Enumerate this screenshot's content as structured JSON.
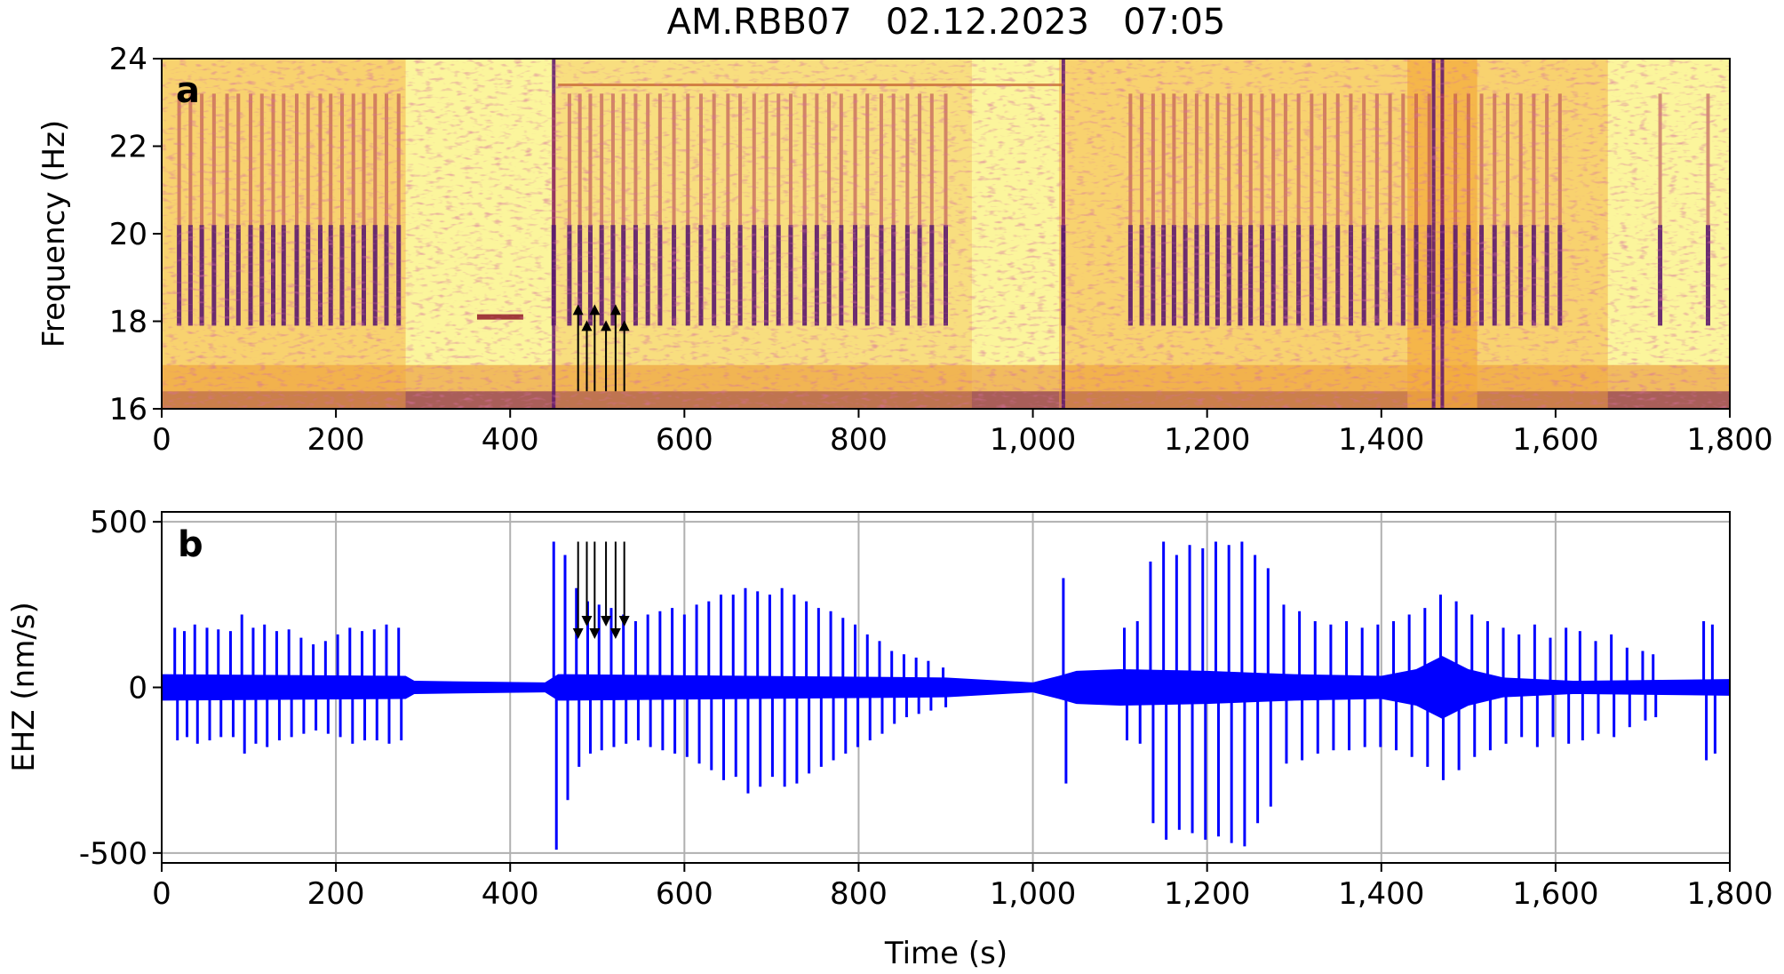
{
  "figure": {
    "title": "AM.RBB07   02.12.2023   07:05"
  },
  "chart_data": [
    {
      "panel": "a",
      "type": "heatmap",
      "subtype": "spectrogram",
      "colormap": "inferno",
      "xlabel": "",
      "ylabel": "Frequency (Hz)",
      "xlim": [
        0,
        1800
      ],
      "ylim": [
        16,
        24
      ],
      "xticks": [
        "0",
        "200",
        "400",
        "600",
        "800",
        "1,000",
        "1,200",
        "1,400",
        "1,600",
        "1,800"
      ],
      "yticks": [
        "16",
        "18",
        "20",
        "22",
        "24"
      ],
      "grid": false,
      "arrow_times_s": [
        478,
        488,
        497,
        510,
        521,
        531
      ],
      "arrow_direction": "up",
      "arrow_freq_range_hz": [
        16.4,
        17.9
      ],
      "tone_line": {
        "t_start": 362,
        "t_end": 415,
        "freq_hz": 18.1
      },
      "pulse_freq_range_hz": [
        17.9,
        20.2
      ],
      "pulse_times_s": [
        20,
        33,
        46,
        60,
        75,
        88,
        102,
        115,
        128,
        140,
        155,
        168,
        182,
        194,
        207,
        220,
        232,
        245,
        258,
        272,
        450,
        468,
        480,
        492,
        505,
        518,
        530,
        544,
        558,
        572,
        588,
        604,
        619,
        634,
        650,
        664,
        680,
        694,
        708,
        722,
        738,
        752,
        766,
        780,
        796,
        810,
        826,
        840,
        856,
        870,
        884,
        900,
        1035,
        1112,
        1125,
        1138,
        1150,
        1162,
        1175,
        1188,
        1200,
        1212,
        1225,
        1238,
        1250,
        1263,
        1276,
        1290,
        1305,
        1320,
        1335,
        1350,
        1365,
        1380,
        1395,
        1410,
        1425,
        1440,
        1455,
        1470,
        1485,
        1500,
        1515,
        1530,
        1545,
        1560,
        1575,
        1590,
        1605,
        1720,
        1775
      ]
    },
    {
      "panel": "b",
      "type": "line",
      "xlabel": "Time (s)",
      "ylabel": "EHZ (nm/s)",
      "xlim": [
        0,
        1800
      ],
      "ylim": [
        -530,
        530
      ],
      "xticks": [
        "0",
        "200",
        "400",
        "600",
        "800",
        "1,000",
        "1,200",
        "1,400",
        "1,600",
        "1,800"
      ],
      "yticks": [
        "-500",
        "0",
        "500"
      ],
      "grid": true,
      "arrow_times_s": [
        478,
        488,
        497,
        510,
        521,
        531
      ],
      "arrow_direction": "down",
      "arrow_amplitude_range_nm_s": [
        440,
        200
      ],
      "series": [
        {
          "color": "#0000ff",
          "pulse_times_s": [
            15,
            26,
            38,
            52,
            65,
            79,
            92,
            105,
            118,
            132,
            146,
            160,
            174,
            188,
            202,
            216,
            230,
            244,
            258,
            272,
            450,
            463,
            476,
            489,
            502,
            516,
            530,
            544,
            558,
            572,
            586,
            600,
            614,
            628,
            642,
            656,
            670,
            684,
            698,
            712,
            726,
            740,
            754,
            768,
            782,
            796,
            810,
            824,
            838,
            852,
            866,
            880,
            897,
            1035,
            1105,
            1120,
            1135,
            1150,
            1165,
            1180,
            1195,
            1210,
            1225,
            1240,
            1255,
            1270,
            1288,
            1306,
            1324,
            1342,
            1360,
            1378,
            1396,
            1414,
            1432,
            1450,
            1468,
            1486,
            1504,
            1522,
            1540,
            1558,
            1576,
            1594,
            1612,
            1628,
            1646,
            1664,
            1682,
            1700,
            1712,
            1770,
            1780
          ],
          "pulse_peak_nm_s": [
            180,
            170,
            190,
            180,
            175,
            170,
            220,
            180,
            190,
            170,
            175,
            150,
            130,
            140,
            160,
            180,
            170,
            175,
            190,
            180,
            440,
            400,
            300,
            260,
            250,
            240,
            220,
            200,
            220,
            230,
            240,
            220,
            250,
            260,
            280,
            280,
            300,
            290,
            280,
            300,
            280,
            260,
            240,
            230,
            210,
            190,
            160,
            140,
            110,
            100,
            90,
            80,
            60,
            330,
            180,
            200,
            380,
            440,
            400,
            430,
            420,
            440,
            430,
            440,
            400,
            360,
            250,
            230,
            200,
            190,
            200,
            180,
            190,
            200,
            220,
            240,
            280,
            260,
            220,
            200,
            180,
            160,
            190,
            150,
            180,
            170,
            140,
            160,
            120,
            110,
            100,
            200,
            190
          ],
          "pulse_trough_nm_s": [
            -160,
            -150,
            -170,
            -160,
            -150,
            -150,
            -200,
            -170,
            -180,
            -160,
            -150,
            -140,
            -130,
            -140,
            -150,
            -170,
            -160,
            -160,
            -170,
            -160,
            -490,
            -340,
            -240,
            -200,
            -190,
            -180,
            -170,
            -160,
            -180,
            -190,
            -200,
            -210,
            -230,
            -250,
            -280,
            -270,
            -320,
            -300,
            -270,
            -300,
            -290,
            -260,
            -240,
            -220,
            -200,
            -180,
            -160,
            -140,
            -110,
            -90,
            -80,
            -70,
            -60,
            -290,
            -160,
            -170,
            -410,
            -460,
            -430,
            -440,
            -460,
            -450,
            -470,
            -480,
            -410,
            -360,
            -230,
            -220,
            -200,
            -190,
            -190,
            -180,
            -180,
            -190,
            -210,
            -240,
            -280,
            -250,
            -210,
            -190,
            -170,
            -150,
            -180,
            -150,
            -170,
            -160,
            -140,
            -150,
            -120,
            -100,
            -90,
            -220,
            -200
          ],
          "noise_envelope": {
            "t_s": [
              0,
              280,
              290,
              440,
              455,
              900,
              1000,
              1030,
              1050,
              1100,
              1200,
              1300,
              1400,
              1440,
              1470,
              1500,
              1540,
              1620,
              1800
            ],
            "amp_nm_s": [
              40,
              35,
              20,
              15,
              40,
              30,
              15,
              35,
              50,
              55,
              50,
              40,
              35,
              55,
              95,
              55,
              30,
              20,
              25
            ]
          }
        }
      ]
    }
  ]
}
